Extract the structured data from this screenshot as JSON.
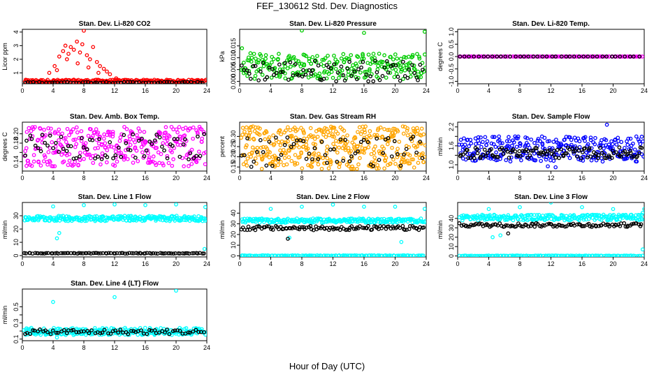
{
  "figure": {
    "title": "FEF_130612  Std. Dev. Diagnostics",
    "xlabel": "Hour of Day (UTC)"
  },
  "chart_data": [
    {
      "type": "scatter",
      "title": "Stan. Dev. Li-820 CO2",
      "ylabel": "Licor ppm",
      "xlim": [
        0,
        24
      ],
      "ylim": [
        0.2,
        4.2
      ],
      "xticks": [
        0,
        4,
        8,
        12,
        16,
        20,
        24
      ],
      "yticks": [
        1,
        2,
        3,
        4
      ],
      "series": [
        {
          "color": "#ff0000",
          "band": [
            0.3,
            0.5
          ],
          "n": 220,
          "x": [
            3.5,
            4.2,
            4.8,
            5.3,
            5.6,
            6.0,
            6.3,
            6.7,
            7.1,
            7.5,
            7.8,
            8.0,
            8.4,
            8.8,
            9.2,
            9.7,
            10.1,
            10.6,
            11.0,
            11.4,
            12.2,
            4.5,
            5.8,
            7.2,
            8.6,
            9.9
          ],
          "y": [
            1.0,
            1.5,
            2.2,
            2.6,
            3.0,
            2.4,
            2.9,
            2.7,
            3.3,
            2.5,
            3.1,
            4.1,
            2.3,
            2.0,
            2.9,
            1.8,
            1.5,
            1.3,
            1.1,
            0.9,
            0.6,
            1.2,
            2.0,
            1.7,
            1.4,
            1.0
          ]
        },
        {
          "color": "#000000",
          "band": [
            0.26,
            0.34
          ],
          "n": 60,
          "x": [],
          "y": []
        }
      ]
    },
    {
      "type": "scatter",
      "title": "Stan. Dev. Li-820 Pressure",
      "ylabel": "kPa",
      "xlim": [
        0,
        24
      ],
      "ylim": [
        -0.001,
        0.022
      ],
      "xticks": [
        0,
        4,
        8,
        12,
        16,
        20,
        24
      ],
      "yticks": [
        0.0,
        0.005,
        0.01,
        0.015
      ],
      "ytick_labels": [
        "0.000",
        "0.005",
        "0.010",
        "0.015"
      ],
      "series": [
        {
          "color": "#00cc00",
          "band": [
            0.001,
            0.012
          ],
          "n": 260,
          "x": [
            0.3,
            8.0,
            16.0,
            23.8
          ],
          "y": [
            0.014,
            0.0215,
            0.0205,
            0.021
          ]
        },
        {
          "color": "#000000",
          "band": [
            0.0,
            0.009
          ],
          "n": 80,
          "x": [],
          "y": []
        }
      ]
    },
    {
      "type": "scatter",
      "title": "Stan. Dev. Li-820 Temp.",
      "ylabel": "degrees C",
      "xlim": [
        0,
        24
      ],
      "ylim": [
        -1.1,
        1.1
      ],
      "xticks": [
        0,
        4,
        8,
        12,
        16,
        20,
        24
      ],
      "yticks": [
        -1.0,
        -0.5,
        0.0,
        0.5,
        1.0
      ],
      "ytick_labels": [
        "-1.0",
        "-0.5",
        "0.0",
        "0.5",
        "1.0"
      ],
      "series": [
        {
          "color": "#ff00ff",
          "band": [
            0.0,
            0.0
          ],
          "n": 120,
          "x": [],
          "y": []
        },
        {
          "color": "#000000",
          "band": [
            0.0,
            0.0
          ],
          "n": 40,
          "x": [],
          "y": []
        }
      ]
    },
    {
      "type": "scatter",
      "title": "Stan. Dev. Amb. Box Temp.",
      "ylabel": "degrees C",
      "xlim": [
        0,
        24
      ],
      "ylim": [
        0.12,
        0.225
      ],
      "xticks": [
        0,
        4,
        8,
        12,
        16,
        20,
        24
      ],
      "yticks": [
        0.14,
        0.16,
        0.18,
        0.2
      ],
      "ytick_labels": [
        "0.14",
        "",
        "0.18",
        "0.20"
      ],
      "series": [
        {
          "color": "#ff00ff",
          "band": [
            0.13,
            0.215
          ],
          "n": 320,
          "x": [],
          "y": []
        },
        {
          "color": "#000000",
          "band": [
            0.145,
            0.2
          ],
          "n": 70,
          "x": [],
          "y": []
        }
      ]
    },
    {
      "type": "scatter",
      "title": "Stan. Dev. Gas Stream RH",
      "ylabel": "percent",
      "xlim": [
        0,
        24
      ],
      "ylim": [
        0.13,
        0.37
      ],
      "xticks": [
        0,
        4,
        8,
        12,
        16,
        20,
        24
      ],
      "yticks": [
        0.15,
        0.2,
        0.25,
        0.3
      ],
      "ytick_labels": [
        "0.15",
        "0.20",
        "0.25",
        "0.30"
      ],
      "series": [
        {
          "color": "#ffa500",
          "band": [
            0.14,
            0.35
          ],
          "n": 420,
          "x": [],
          "y": []
        },
        {
          "color": "#000000",
          "band": [
            0.15,
            0.3
          ],
          "n": 60,
          "x": [],
          "y": []
        }
      ]
    },
    {
      "type": "scatter",
      "title": "Stan. Dev. Sample Flow",
      "ylabel": "ml/min",
      "xlim": [
        0,
        24
      ],
      "ylim": [
        0.8,
        2.35
      ],
      "xticks": [
        0,
        4,
        8,
        12,
        16,
        20,
        24
      ],
      "yticks": [
        1.0,
        1.3,
        1.6,
        1.9,
        2.2
      ],
      "ytick_labels": [
        "1.0",
        "",
        "1.6",
        "",
        "2.2"
      ],
      "series": [
        {
          "color": "#0000ff",
          "band": [
            1.1,
            1.9
          ],
          "n": 300,
          "x": [
            19.2,
            11.6,
            12.6
          ],
          "y": [
            2.27,
            0.95,
            0.92
          ]
        },
        {
          "color": "#000000",
          "band": [
            1.2,
            1.55
          ],
          "n": 120,
          "x": [],
          "y": []
        }
      ]
    },
    {
      "type": "scatter",
      "title": "Stan. Dev. Line 1 Flow",
      "ylabel": "ml/min",
      "xlim": [
        0,
        24
      ],
      "ylim": [
        -1,
        40
      ],
      "xticks": [
        0,
        4,
        8,
        12,
        16,
        20,
        24
      ],
      "yticks": [
        0,
        10,
        20,
        30
      ],
      "series": [
        {
          "color": "#00ffff",
          "band": [
            26,
            30
          ],
          "n": 260,
          "x": [
            4.0,
            8.0,
            12.0,
            16.0,
            20.0,
            23.8,
            4.5,
            4.8,
            23.7
          ],
          "y": [
            37,
            38,
            38.5,
            38,
            38.5,
            36.5,
            13,
            17,
            5
          ]
        },
        {
          "color": "#000000",
          "band": [
            1.5,
            2.0
          ],
          "n": 90,
          "x": [],
          "y": []
        }
      ]
    },
    {
      "type": "scatter",
      "title": "Stan. Dev. Line 2 Flow",
      "ylabel": "ml/min",
      "xlim": [
        0,
        24
      ],
      "ylim": [
        -1,
        50
      ],
      "xticks": [
        0,
        4,
        8,
        12,
        16,
        20,
        24
      ],
      "yticks": [
        0,
        10,
        20,
        30,
        40
      ],
      "series": [
        {
          "color": "#00ffff",
          "band": [
            31,
            35
          ],
          "n": 240,
          "x": [
            4.0,
            8.0,
            12.0,
            16.0,
            20.0,
            23.8,
            6.4,
            20.8
          ],
          "y": [
            44,
            46,
            48,
            46,
            46,
            44,
            17,
            13
          ]
        },
        {
          "color": "#00ffff",
          "band": [
            0,
            0.5
          ],
          "n": 120,
          "x": [],
          "y": []
        },
        {
          "color": "#000000",
          "band": [
            24,
            28
          ],
          "n": 110,
          "x": [
            6.2
          ],
          "y": [
            16
          ]
        }
      ]
    },
    {
      "type": "scatter",
      "title": "Stan. Dev. Line 3 Flow",
      "ylabel": "ml/min",
      "xlim": [
        0,
        24
      ],
      "ylim": [
        -1,
        57
      ],
      "xticks": [
        0,
        4,
        8,
        12,
        16,
        20,
        24
      ],
      "yticks": [
        0,
        10,
        20,
        30,
        40
      ],
      "series": [
        {
          "color": "#00ffff",
          "band": [
            38,
            44
          ],
          "n": 240,
          "x": [
            4.0,
            8.0,
            12.0,
            16.0,
            20.0,
            23.8,
            24.0,
            4.5,
            5.5,
            23.8
          ],
          "y": [
            50,
            52,
            57,
            52,
            50,
            46,
            50,
            20,
            22,
            7
          ]
        },
        {
          "color": "#00ffff",
          "band": [
            0,
            0.5
          ],
          "n": 120,
          "x": [],
          "y": []
        },
        {
          "color": "#000000",
          "band": [
            31,
            35
          ],
          "n": 110,
          "x": [
            6.5
          ],
          "y": [
            24
          ]
        }
      ]
    },
    {
      "type": "scatter",
      "title": "Stan. Dev. Line 4 (LT) Flow",
      "ylabel": "ml/min",
      "xlim": [
        0,
        24
      ],
      "ylim": [
        0.08,
        0.72
      ],
      "xticks": [
        0,
        4,
        8,
        12,
        16,
        20,
        24
      ],
      "yticks": [
        0.1,
        0.2,
        0.3,
        0.4,
        0.5
      ],
      "ytick_labels": [
        "0.1",
        "",
        "0.3",
        "",
        "0.5"
      ],
      "series": [
        {
          "color": "#00ffff",
          "band": [
            0.15,
            0.24
          ],
          "n": 260,
          "x": [
            4.0,
            12.0,
            20.0,
            4.5
          ],
          "y": [
            0.56,
            0.62,
            0.7,
            0.12
          ]
        },
        {
          "color": "#000000",
          "band": [
            0.16,
            0.22
          ],
          "n": 70,
          "x": [],
          "y": []
        }
      ]
    }
  ]
}
